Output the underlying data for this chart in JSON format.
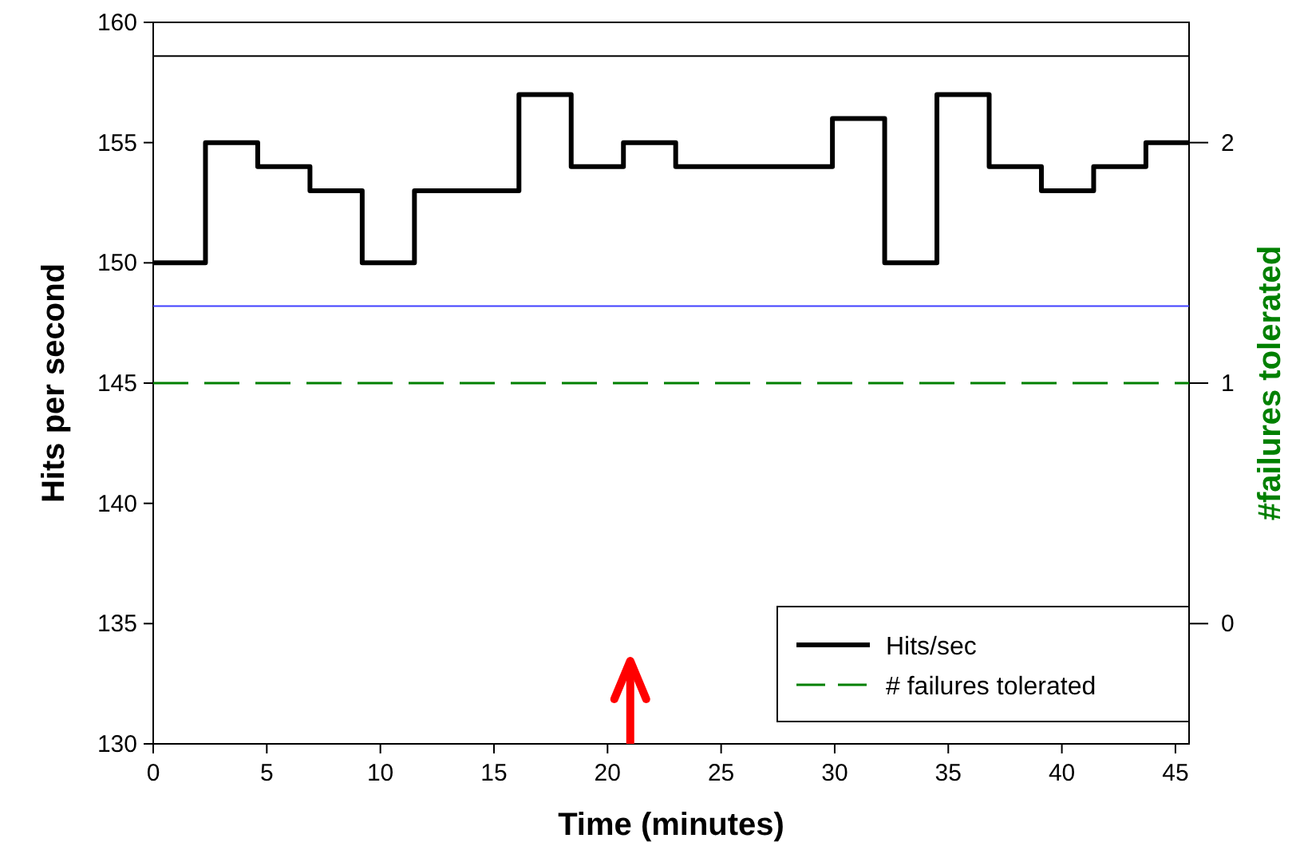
{
  "chart_data": {
    "type": "step",
    "xlabel": "Time (minutes)",
    "ylabel": "Hits per second",
    "y2label": "#failures tolerated",
    "xlim": [
      0,
      45.6
    ],
    "xticks": [
      0,
      5,
      10,
      15,
      20,
      25,
      30,
      35,
      40,
      45
    ],
    "ylim": [
      130,
      160
    ],
    "yticks": [
      130,
      135,
      140,
      145,
      150,
      155,
      160
    ],
    "y2lim": [
      -0.5,
      2.5
    ],
    "y2ticks": [
      0,
      1,
      2
    ],
    "series": [
      {
        "name": "Hits/sec",
        "color": "#000000",
        "x": [
          0,
          2.3,
          4.6,
          6.9,
          9.2,
          11.5,
          16.1,
          18.4,
          20.7,
          23,
          29.9,
          32.2,
          34.5,
          36.8,
          39.1,
          41.4,
          43.7,
          45.6
        ],
        "values": [
          150,
          155,
          154,
          153,
          150,
          153,
          157,
          154,
          155,
          154,
          156,
          150,
          157,
          154,
          153,
          154,
          155,
          155
        ]
      },
      {
        "name": "# failures tolerated",
        "type": "line",
        "axis": "y2",
        "color": "#008000",
        "line_style": "dashed",
        "x": [
          0,
          45.6
        ],
        "values": [
          1,
          1
        ]
      }
    ],
    "ref_lines": [
      {
        "axis": "y",
        "value": 158.6,
        "color": "#000000"
      },
      {
        "axis": "y",
        "value": 148.2,
        "color": "#4040ff"
      }
    ],
    "legend": "bottom right",
    "grid": false
  }
}
